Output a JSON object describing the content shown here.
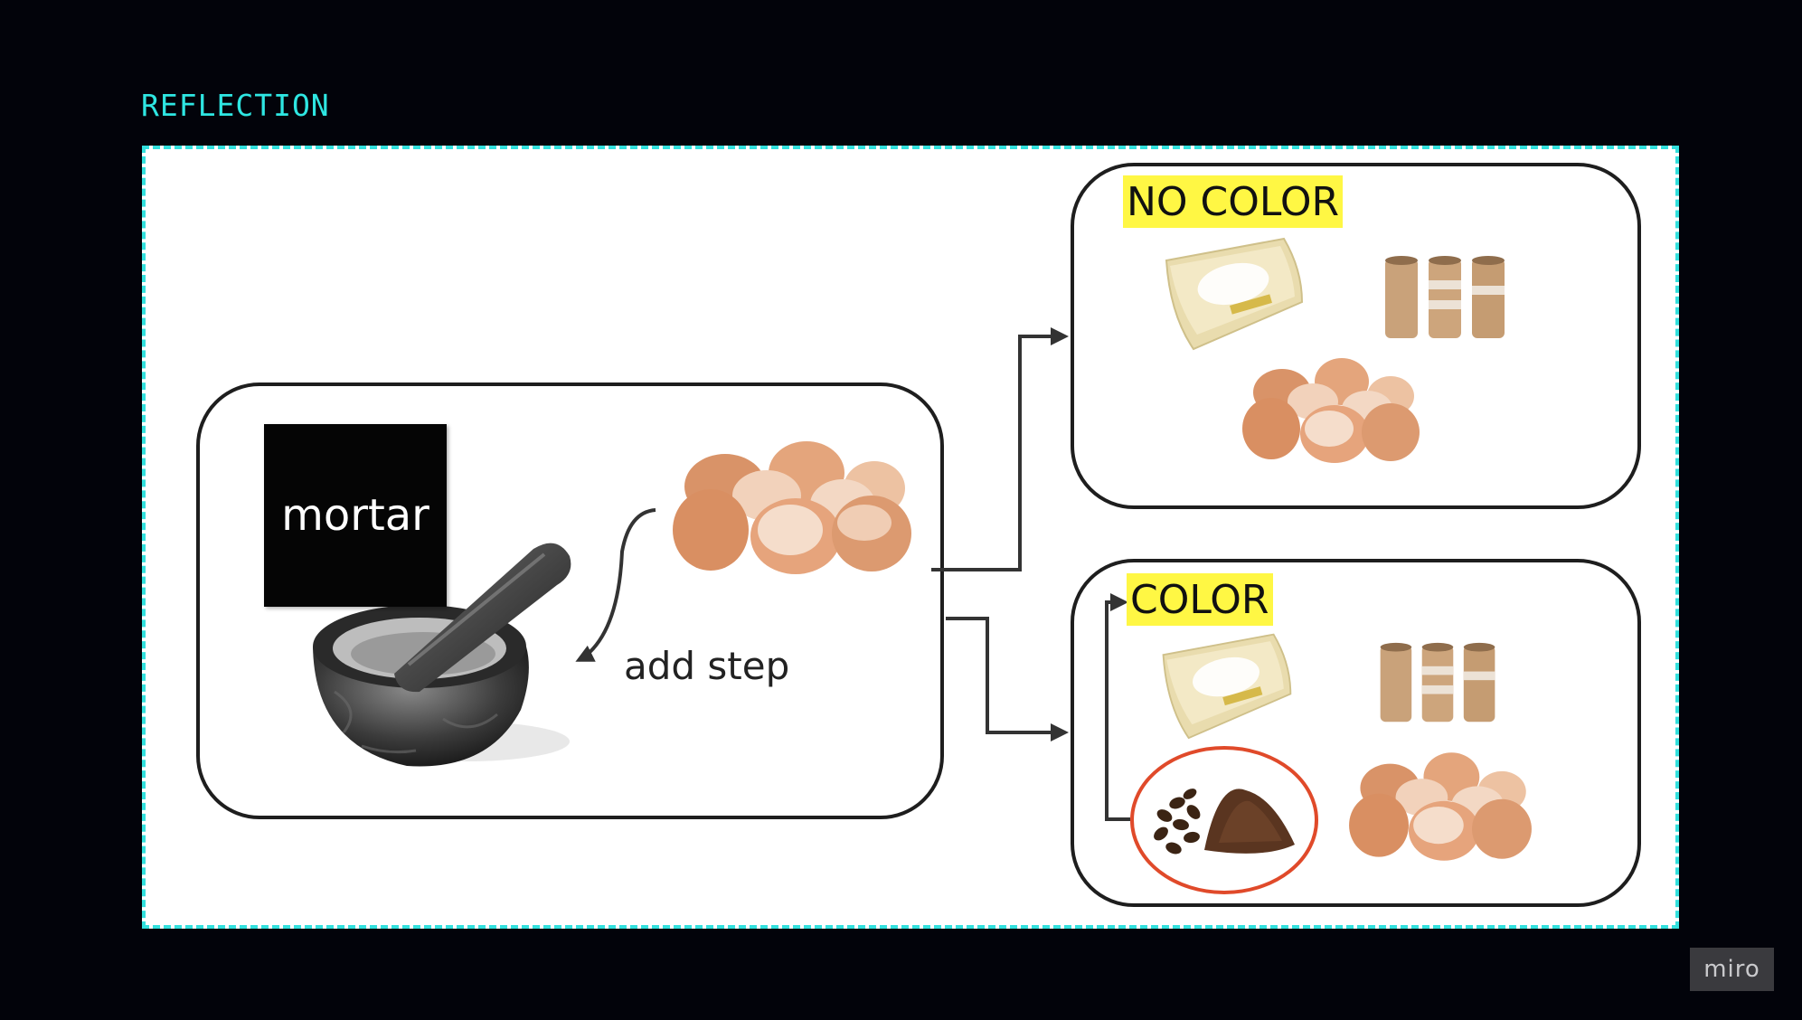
{
  "frame": {
    "title": "REFLECTION"
  },
  "mortar_group": {
    "sticky_label": "mortar",
    "step_label": "add step"
  },
  "no_color_group": {
    "label": "NO COLOR"
  },
  "color_group": {
    "label": "COLOR"
  },
  "branding": {
    "badge": "miro"
  },
  "colors": {
    "background": "#02030a",
    "frame_border": "#33e0dd",
    "frame_title": "#2ee6e2",
    "highlight": "#fff744",
    "sticky": "#050505",
    "coffee_circle": "#e04a2a"
  },
  "icons": [
    "mortar-pestle-icon",
    "eggshells-icon",
    "wipes-pack-icon",
    "cardboard-tubes-icon",
    "coffee-beans-icon"
  ]
}
